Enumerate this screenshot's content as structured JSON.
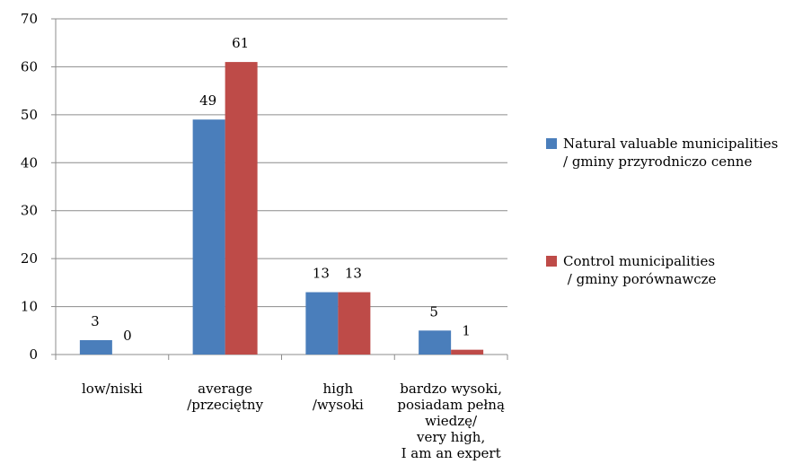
{
  "chart_data": {
    "type": "bar",
    "categories": [
      [
        "low/niski"
      ],
      [
        "average",
        "/przeciętny"
      ],
      [
        "high",
        "/wysoki"
      ],
      [
        "bardzo wysoki,",
        "posiadam pełną",
        "wiedzę/",
        "very high,",
        "I am an expert"
      ]
    ],
    "series": [
      {
        "name": "Natural valuable municipalities\n/ gminy przyrodniczo cenne",
        "values": [
          3,
          49,
          13,
          5
        ],
        "color": "#4a7ebb"
      },
      {
        "name": "Control municipalities\n / gminy porównawcze",
        "values": [
          0,
          61,
          13,
          1
        ],
        "color": "#be4b48"
      }
    ],
    "ylim": [
      0,
      70
    ],
    "yticks": [
      0,
      10,
      20,
      30,
      40,
      50,
      60,
      70
    ],
    "grid": true,
    "legend": "right",
    "title": "",
    "xlabel": "",
    "ylabel": ""
  }
}
